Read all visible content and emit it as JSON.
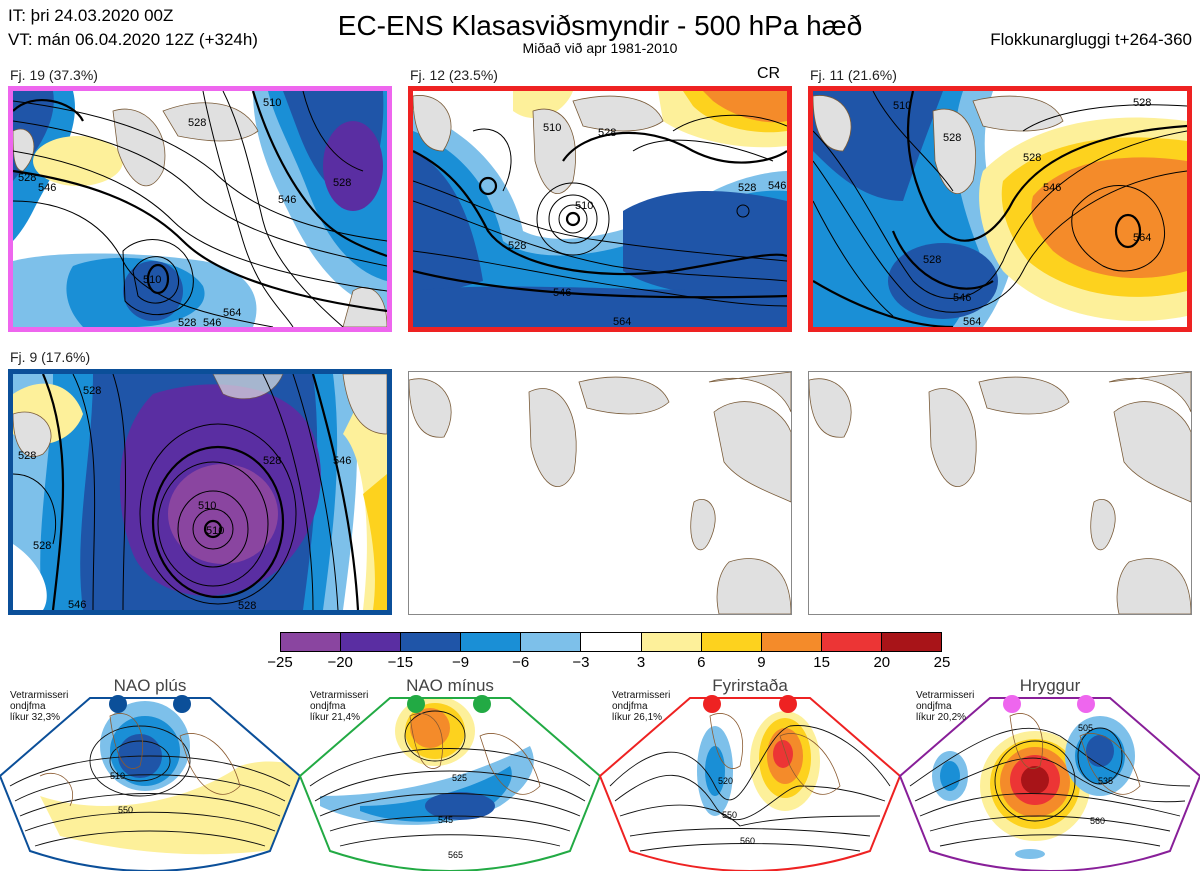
{
  "header": {
    "init_time": "IT: þri 24.03.2020 00Z",
    "valid_time": "VT: mán 06.04.2020 12Z  (+324h)",
    "title": "EC-ENS Klasasviðsmyndir - 500 hPa hæð",
    "subtitle": "Miðað við apr 1981-2010",
    "window": "Flokkunargluggi t+264-360"
  },
  "cr_label": "CR",
  "clusters": [
    {
      "label": "Fj. 19 (37.3%)",
      "frame_color": "#ee66ee",
      "contours": [
        "528",
        "510",
        "528",
        "546",
        "528",
        "546",
        "510",
        "528",
        "546",
        "564"
      ]
    },
    {
      "label": "Fj. 12 (23.5%)",
      "frame_color": "#ee2222",
      "contours": [
        "528",
        "510",
        "528",
        "510",
        "528",
        "546",
        "546",
        "564"
      ]
    },
    {
      "label": "Fj. 11 (21.6%)",
      "frame_color": "#ee2222",
      "contours": [
        "528",
        "510",
        "528",
        "546",
        "528",
        "564",
        "546",
        "528",
        "564"
      ]
    },
    {
      "label": "Fj. 9 (17.6%)",
      "frame_color": "#0b4f99",
      "contours": [
        "528",
        "510",
        "528",
        "546",
        "510",
        "528",
        "528",
        "546",
        "528"
      ]
    }
  ],
  "colorbar": {
    "ticks": [
      "−25",
      "−20",
      "−15",
      "−9",
      "−6",
      "−3",
      "3",
      "6",
      "9",
      "15",
      "20",
      "25"
    ],
    "colors": [
      "#8a45a0",
      "#5a2ea2",
      "#1f55a8",
      "#1a8fd6",
      "#7dc0ea",
      "#ffffff",
      "#fdf09a",
      "#fdd21e",
      "#f48b2a",
      "#ec3535",
      "#a81418"
    ]
  },
  "regimes": [
    {
      "name": "NAO plús",
      "frame_color": "#0b4f99",
      "dot_color": "#0b4f99",
      "note": [
        "Vetrarmisseri",
        "ondjfma",
        "líkur 32,3%"
      ],
      "contours": [
        "510",
        "550"
      ]
    },
    {
      "name": "NAO mínus",
      "frame_color": "#22aa44",
      "dot_color": "#22aa44",
      "note": [
        "Vetrarmisseri",
        "ondjfma",
        "líkur 21,4%"
      ],
      "contours": [
        "525",
        "545",
        "565"
      ]
    },
    {
      "name": "Fyrirstaða",
      "frame_color": "#ee2222",
      "dot_color": "#ee2222",
      "note": [
        "Vetrarmisseri",
        "ondjfma",
        "líkur 26,1%"
      ],
      "contours": [
        "520",
        "550",
        "560"
      ]
    },
    {
      "name": "Hryggur",
      "frame_color": "#881f99",
      "dot_color": "#ee66ee",
      "note": [
        "Vetrarmisseri",
        "ondjfma",
        "líkur 20,2%"
      ],
      "contours": [
        "505",
        "535",
        "560"
      ]
    }
  ]
}
